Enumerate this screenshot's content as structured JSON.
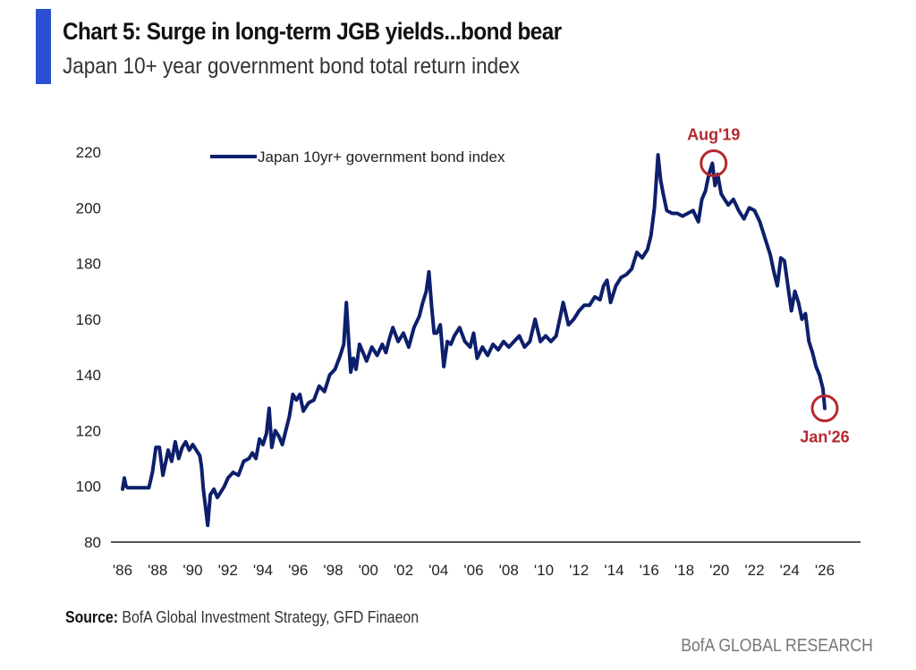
{
  "header": {
    "title": "Chart 5: Surge in long-term JGB yields...bond bear",
    "subtitle": "Japan 10+ year government bond total return index",
    "accent_color": "#2a4fd0"
  },
  "footer": {
    "source_label": "Source:",
    "source_text": " BofA Global Investment Strategy, GFD Finaeon",
    "brand": "BofA GLOBAL RESEARCH"
  },
  "chart_data": {
    "type": "line",
    "title": "Chart 5: Surge in long-term JGB yields...bond bear",
    "subtitle": "Japan 10+ year government bond total return index",
    "xlabel": "",
    "ylabel": "",
    "ylim": [
      80,
      220
    ],
    "xlim": [
      1986,
      2026
    ],
    "grid": false,
    "legend_position": "top-center",
    "yticks": [
      80,
      100,
      120,
      140,
      160,
      180,
      200,
      220
    ],
    "ytick_labels": [
      "80",
      "100",
      "120",
      "140",
      "160",
      "180",
      "200",
      "220"
    ],
    "xticks": [
      1986,
      1988,
      1990,
      1992,
      1994,
      1996,
      1998,
      2000,
      2002,
      2004,
      2006,
      2008,
      2010,
      2012,
      2014,
      2016,
      2018,
      2020,
      2022,
      2024,
      2026
    ],
    "xtick_labels": [
      "'86",
      "'88",
      "'90",
      "'92",
      "'94",
      "'96",
      "'98",
      "'00",
      "'02",
      "'04",
      "'06",
      "'08",
      "'10",
      "'12",
      "'14",
      "'16",
      "'18",
      "'20",
      "'22",
      "'24",
      "'26"
    ],
    "series": [
      {
        "name": "Japan 10yr+ government bond index",
        "color": "#0d1f6b",
        "x": [
          1986.0,
          1986.1,
          1986.2,
          1986.3,
          1986.5,
          1987.0,
          1987.5,
          1987.7,
          1987.9,
          1988.1,
          1988.3,
          1988.5,
          1988.6,
          1988.8,
          1989.0,
          1989.2,
          1989.4,
          1989.6,
          1989.8,
          1990.0,
          1990.2,
          1990.4,
          1990.5,
          1990.6,
          1990.7,
          1990.85,
          1991.0,
          1991.2,
          1991.4,
          1991.6,
          1991.8,
          1992.0,
          1992.3,
          1992.6,
          1992.9,
          1993.2,
          1993.4,
          1993.6,
          1993.8,
          1994.0,
          1994.2,
          1994.35,
          1994.5,
          1994.7,
          1994.9,
          1995.1,
          1995.3,
          1995.5,
          1995.7,
          1995.9,
          1996.1,
          1996.3,
          1996.6,
          1996.9,
          1997.2,
          1997.5,
          1997.8,
          1998.1,
          1998.4,
          1998.6,
          1998.75,
          1998.9,
          1999.0,
          1999.15,
          1999.3,
          1999.5,
          1999.7,
          1999.9,
          2000.2,
          2000.5,
          2000.8,
          2001.0,
          2001.2,
          2001.4,
          2001.7,
          2002.0,
          2002.3,
          2002.6,
          2002.9,
          2003.1,
          2003.3,
          2003.45,
          2003.6,
          2003.75,
          2003.9,
          2004.1,
          2004.3,
          2004.5,
          2004.7,
          2004.9,
          2005.2,
          2005.5,
          2005.8,
          2006.0,
          2006.2,
          2006.5,
          2006.8,
          2007.1,
          2007.4,
          2007.7,
          2008.0,
          2008.3,
          2008.6,
          2008.9,
          2009.2,
          2009.5,
          2009.8,
          2010.1,
          2010.4,
          2010.7,
          2010.9,
          2011.1,
          2011.4,
          2011.7,
          2012.0,
          2012.3,
          2012.6,
          2012.9,
          2013.2,
          2013.4,
          2013.6,
          2013.8,
          2014.1,
          2014.4,
          2014.7,
          2015.0,
          2015.3,
          2015.6,
          2015.9,
          2016.1,
          2016.3,
          2016.5,
          2016.65,
          2016.8,
          2017.0,
          2017.3,
          2017.6,
          2017.9,
          2018.2,
          2018.5,
          2018.8,
          2019.0,
          2019.2,
          2019.4,
          2019.6,
          2019.75,
          2019.9,
          2020.1,
          2020.3,
          2020.5,
          2020.8,
          2021.1,
          2021.4,
          2021.7,
          2022.0,
          2022.3,
          2022.6,
          2022.9,
          2023.1,
          2023.3,
          2023.5,
          2023.7,
          2023.9,
          2024.1,
          2024.3,
          2024.5,
          2024.7,
          2024.9,
          2025.1,
          2025.3,
          2025.5,
          2025.7,
          2025.9,
          2026.0
        ],
        "y": [
          99,
          103,
          100,
          99.5,
          99.5,
          99.5,
          99.5,
          105,
          114,
          114,
          104,
          110,
          113,
          109,
          116,
          110,
          114,
          116,
          113,
          115,
          113,
          111,
          107,
          99,
          94,
          86,
          97,
          99,
          96,
          98,
          100,
          103,
          105,
          104,
          109,
          110,
          112,
          110,
          117,
          115,
          119,
          128,
          114,
          120,
          118,
          115,
          120,
          125,
          133,
          131,
          133,
          127,
          130,
          131,
          136,
          134,
          140,
          142,
          147,
          151,
          166,
          150,
          141,
          146,
          142,
          151,
          148,
          145,
          150,
          147,
          151,
          148,
          153,
          157,
          152,
          155,
          150,
          157,
          161,
          166,
          170,
          177,
          165,
          155,
          155,
          158,
          143,
          152,
          151,
          154,
          157,
          152,
          150,
          155,
          146,
          150,
          147,
          151,
          149,
          152,
          150,
          152,
          154,
          150,
          152,
          160,
          152,
          154,
          152,
          154,
          160,
          166,
          158,
          160,
          163,
          165,
          165,
          168,
          167,
          172,
          174,
          166,
          172,
          175,
          176,
          178,
          184,
          182,
          185,
          190,
          200,
          219,
          210,
          205,
          199,
          198,
          198,
          197,
          198,
          199,
          195,
          203,
          206,
          212,
          216,
          208,
          212,
          205,
          203,
          201,
          203,
          199,
          196,
          200,
          199,
          195,
          189,
          183,
          177,
          172,
          182,
          181,
          172,
          163,
          170,
          166,
          160,
          162,
          152,
          148,
          143,
          140,
          135,
          128
        ]
      }
    ],
    "annotations": [
      {
        "label": "Aug'19",
        "x": 2019.67,
        "y": 216,
        "position": "above",
        "color": "#b5282e"
      },
      {
        "label": "Jan'26",
        "x": 2026.0,
        "y": 128,
        "position": "below",
        "color": "#b5282e"
      }
    ]
  }
}
